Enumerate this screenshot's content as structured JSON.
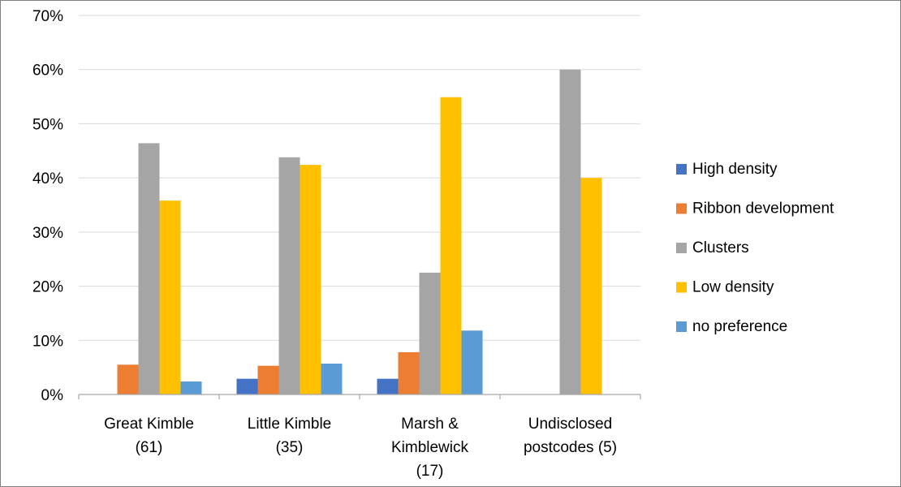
{
  "chart_data": {
    "type": "bar",
    "categories": [
      [
        "Great Kimble",
        "(61)"
      ],
      [
        "Little Kimble",
        "(35)"
      ],
      [
        "Marsh &",
        "Kimblewick",
        "(17)"
      ],
      [
        "Undisclosed",
        "postcodes (5)"
      ]
    ],
    "series": [
      {
        "name": "High density",
        "color": "#4472C4",
        "values": [
          0,
          2.9,
          2.9,
          0
        ]
      },
      {
        "name": "Ribbon development",
        "color": "#ED7D31",
        "values": [
          5.5,
          5.3,
          7.8,
          0
        ]
      },
      {
        "name": "Clusters",
        "color": "#A5A5A5",
        "values": [
          46.4,
          43.8,
          22.5,
          60.0
        ]
      },
      {
        "name": "Low density",
        "color": "#FFC000",
        "values": [
          35.8,
          42.4,
          54.9,
          40.0
        ]
      },
      {
        "name": "no preference",
        "color": "#5B9BD5",
        "values": [
          2.4,
          5.7,
          11.8,
          0
        ]
      }
    ],
    "y_ticks": [
      "0%",
      "10%",
      "20%",
      "30%",
      "40%",
      "50%",
      "60%",
      "70%"
    ],
    "ylim": [
      0,
      70
    ],
    "grid": true,
    "legend_position": "right"
  }
}
